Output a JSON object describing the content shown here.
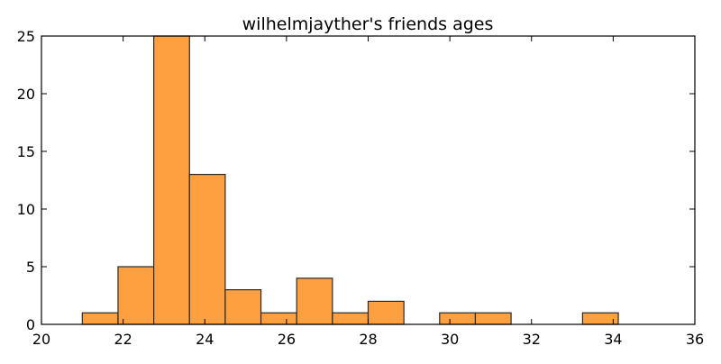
{
  "chart_data": {
    "type": "bar",
    "title": "wilhelmjayther's friends ages",
    "xlabel": "",
    "ylabel": "",
    "xlim": [
      20,
      36
    ],
    "ylim": [
      0,
      25
    ],
    "x_ticks": [
      20,
      22,
      24,
      26,
      28,
      30,
      32,
      34,
      36
    ],
    "y_ticks": [
      0,
      5,
      10,
      15,
      20,
      25
    ],
    "bin_edges": [
      21.0,
      21.875,
      22.75,
      23.625,
      24.5,
      25.375,
      26.25,
      27.125,
      28.0,
      28.875,
      29.75,
      30.625,
      31.5,
      32.375,
      33.25,
      34.125,
      35.0
    ],
    "counts": [
      1,
      5,
      25,
      13,
      3,
      1,
      4,
      1,
      2,
      0,
      1,
      1,
      0,
      0,
      1,
      0
    ],
    "grid": false,
    "bar_color": "#ffa040",
    "edge_color": "#2a2a2a"
  }
}
